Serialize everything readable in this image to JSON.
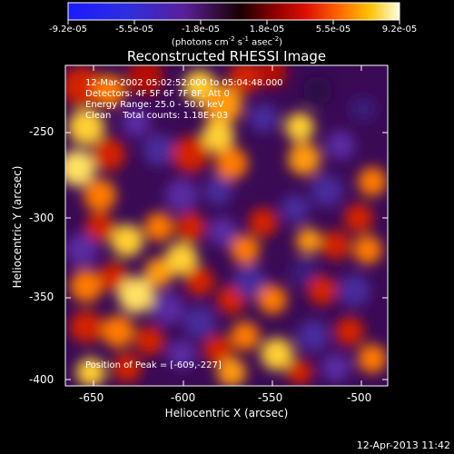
{
  "colorbar": {
    "ticks": [
      {
        "label": "-9.2e-05",
        "frac": 0.0
      },
      {
        "label": "-5.5e-05",
        "frac": 0.2
      },
      {
        "label": "-1.8e-05",
        "frac": 0.4
      },
      {
        "label": "1.8e-05",
        "frac": 0.6
      },
      {
        "label": "5.5e-05",
        "frac": 0.8
      },
      {
        "label": "9.2e-05",
        "frac": 1.0
      }
    ],
    "units_prefix": "(photons cm",
    "units_exp1": "-2",
    "units_mid": " s",
    "units_exp2": "-1",
    "units_mid2": " asec",
    "units_exp3": "-2",
    "units_suffix": ")"
  },
  "image": {
    "title": "Reconstructed RHESSI Image",
    "xlabel": "Heliocentric X (arcsec)",
    "ylabel": "Heliocentric Y (arcsec)",
    "x_ticks": [
      "-650",
      "-600",
      "-550",
      "-500"
    ],
    "y_ticks": [
      "-250",
      "-300",
      "-350",
      "-400"
    ],
    "info_lines": [
      "12-Mar-2002 05:02:52.000 to 05:04:48.000",
      "Detectors: 4F 5F 6F 7F 8F, Att 0",
      "Energy Range: 25.0 - 50.0 keV",
      "Clean    Total counts: 1.18E+03"
    ],
    "peak": "Position of Peak = [-609,-227]"
  },
  "footer": {
    "timestamp": "12-Apr-2013 11:42"
  },
  "colors": {
    "background": "#000000",
    "text": "#ffffff"
  }
}
